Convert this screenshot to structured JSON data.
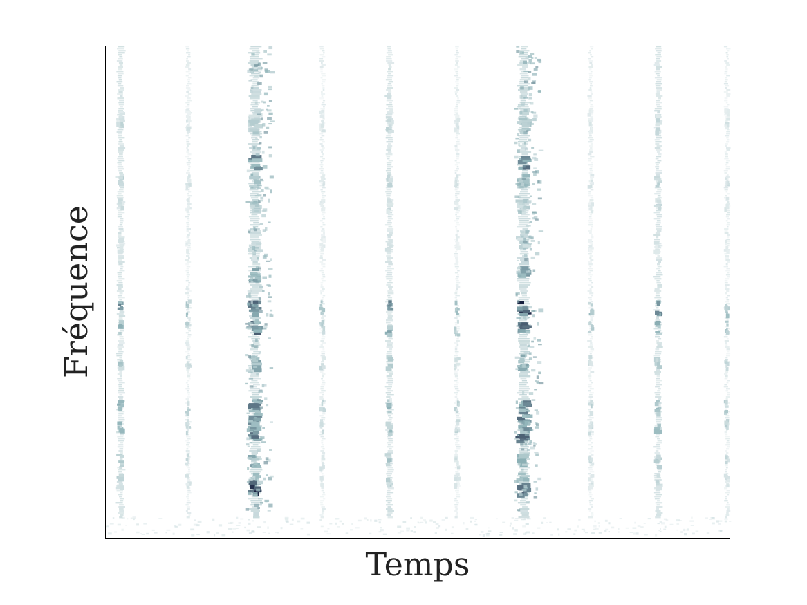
{
  "chart_data": {
    "type": "heatmap",
    "title": "",
    "xlabel": "Temps",
    "ylabel": "Fréquence",
    "colormap": {
      "low": "#ffffff",
      "mid": "#8fb3b8",
      "high": "#141c3c"
    },
    "grid": false,
    "x_ticks_shown": false,
    "y_ticks_shown": false,
    "description_of_pattern": "",
    "time_columns": [
      {
        "t": 0.025,
        "kind": "stroke",
        "strength": 0.7
      },
      {
        "t": 0.133,
        "kind": "light",
        "strength": 0.45
      },
      {
        "t": 0.24,
        "kind": "accent",
        "strength": 1.0
      },
      {
        "t": 0.348,
        "kind": "light",
        "strength": 0.45
      },
      {
        "t": 0.455,
        "kind": "stroke",
        "strength": 0.7
      },
      {
        "t": 0.563,
        "kind": "light",
        "strength": 0.45
      },
      {
        "t": 0.67,
        "kind": "accent",
        "strength": 1.0
      },
      {
        "t": 0.777,
        "kind": "light",
        "strength": 0.45
      },
      {
        "t": 0.885,
        "kind": "stroke",
        "strength": 0.7
      },
      {
        "t": 0.995,
        "kind": "light",
        "strength": 0.5
      }
    ],
    "frequency_bands": [
      {
        "f": 0.47,
        "intensity": 0.95
      },
      {
        "f": 0.43,
        "intensity": 0.75
      },
      {
        "f": 0.36,
        "intensity": 0.55
      },
      {
        "f": 0.27,
        "intensity": 0.7
      },
      {
        "f": 0.23,
        "intensity": 0.65
      },
      {
        "f": 0.16,
        "intensity": 0.55
      },
      {
        "f": 0.12,
        "intensity": 0.45
      },
      {
        "f": 0.86,
        "intensity": 0.3
      },
      {
        "f": 0.73,
        "intensity": 0.45
      },
      {
        "f": 0.68,
        "intensity": 0.35
      },
      {
        "f": 0.6,
        "intensity": 0.3
      },
      {
        "f": 0.84,
        "intensity": 0.4
      }
    ],
    "accent_extra_bands": [
      {
        "f": 0.105,
        "intensity": 1.0
      },
      {
        "f": 0.215,
        "intensity": 0.8
      },
      {
        "f": 0.25,
        "intensity": 0.7
      },
      {
        "f": 0.765,
        "intensity": 0.7
      },
      {
        "f": 0.54,
        "intensity": 0.6
      }
    ]
  }
}
